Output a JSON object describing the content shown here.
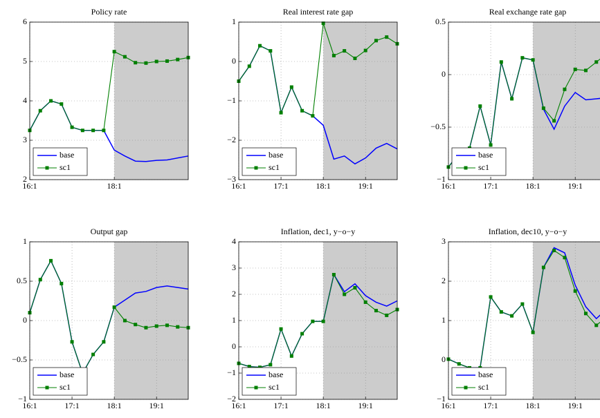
{
  "chart_data": [
    {
      "type": "line",
      "title": "Policy rate",
      "categories": [
        "16:1",
        null,
        null,
        null,
        null,
        null,
        null,
        null,
        "18:1",
        null,
        null,
        null,
        null,
        null,
        null,
        null
      ],
      "series": [
        {
          "name": "base",
          "color": "#0000ff",
          "values": [
            3.25,
            3.75,
            4.0,
            3.92,
            3.33,
            3.25,
            3.25,
            3.25,
            2.75,
            2.6,
            2.47,
            2.46,
            2.49,
            2.5,
            2.55,
            2.6
          ]
        },
        {
          "name": "sc1",
          "color": "#007f00",
          "values": [
            3.25,
            3.75,
            4.0,
            3.92,
            3.33,
            3.25,
            3.25,
            3.25,
            5.25,
            5.12,
            4.97,
            4.96,
            5.0,
            5.01,
            5.05,
            5.1
          ]
        }
      ],
      "ylim": [
        2,
        6
      ],
      "yticks": [
        2,
        3,
        4,
        5,
        6
      ],
      "grid": true,
      "legend": "lower left",
      "shade_start": 8
    },
    {
      "type": "line",
      "title": "Real interest rate gap",
      "categories": [
        "16:1",
        null,
        null,
        null,
        "17:1",
        null,
        null,
        null,
        "18:1",
        null,
        null,
        null,
        "19:1",
        null,
        null,
        null
      ],
      "series": [
        {
          "name": "base",
          "color": "#0000ff",
          "values": [
            -0.5,
            -0.12,
            0.4,
            0.27,
            -1.3,
            -0.65,
            -1.25,
            -1.38,
            -1.62,
            -2.48,
            -2.4,
            -2.6,
            -2.45,
            -2.2,
            -2.08,
            -2.22
          ]
        },
        {
          "name": "sc1",
          "color": "#007f00",
          "values": [
            -0.5,
            -0.12,
            0.4,
            0.27,
            -1.3,
            -0.65,
            -1.25,
            -1.38,
            0.97,
            0.15,
            0.27,
            0.08,
            0.28,
            0.53,
            0.62,
            0.45
          ]
        }
      ],
      "ylim": [
        -3,
        1
      ],
      "yticks": [
        {
          "value": -3,
          "label": "−3"
        },
        {
          "value": -2,
          "label": "−2"
        },
        {
          "value": -1,
          "label": "−1"
        },
        0,
        1
      ],
      "grid": true,
      "legend": "lower left",
      "shade_start": 8
    },
    {
      "type": "line",
      "title": "Real exchange rate gap",
      "categories": [
        "16:1",
        null,
        null,
        null,
        "17:1",
        null,
        null,
        null,
        "18:1",
        null,
        null,
        null,
        "19:1",
        null,
        null,
        null
      ],
      "series": [
        {
          "name": "base",
          "color": "#0000ff",
          "values": [
            -0.88,
            -0.75,
            -0.7,
            -0.3,
            -0.67,
            0.12,
            -0.23,
            0.16,
            0.14,
            -0.33,
            -0.52,
            -0.3,
            -0.17,
            -0.24,
            -0.23,
            -0.22
          ]
        },
        {
          "name": "sc1",
          "color": "#007f00",
          "values": [
            -0.88,
            -0.75,
            -0.7,
            -0.3,
            -0.67,
            0.12,
            -0.23,
            0.16,
            0.14,
            -0.32,
            -0.44,
            -0.14,
            0.05,
            0.04,
            0.12,
            0.2
          ]
        }
      ],
      "ylim": [
        -1,
        0.5
      ],
      "yticks": [
        {
          "value": -1,
          "label": "−1"
        },
        {
          "value": -0.5,
          "label": "−0.5"
        },
        0,
        0.5
      ],
      "grid": true,
      "legend": "lower left",
      "shade_start": 8
    },
    {
      "type": "line",
      "title": "Output gap",
      "categories": [
        "16:1",
        null,
        null,
        null,
        "17:1",
        null,
        null,
        null,
        "18:1",
        null,
        null,
        null,
        "19:1",
        null,
        null,
        null
      ],
      "series": [
        {
          "name": "base",
          "color": "#0000ff",
          "values": [
            0.1,
            0.52,
            0.76,
            0.47,
            -0.27,
            -0.67,
            -0.43,
            -0.27,
            0.17,
            0.26,
            0.35,
            0.37,
            0.42,
            0.44,
            0.42,
            0.4
          ]
        },
        {
          "name": "sc1",
          "color": "#007f00",
          "values": [
            0.1,
            0.52,
            0.76,
            0.47,
            -0.27,
            -0.67,
            -0.43,
            -0.27,
            0.17,
            0.0,
            -0.05,
            -0.09,
            -0.07,
            -0.06,
            -0.08,
            -0.09
          ]
        }
      ],
      "ylim": [
        -1,
        1
      ],
      "yticks": [
        {
          "value": -1,
          "label": "−1"
        },
        {
          "value": -0.5,
          "label": "−0.5"
        },
        0,
        0.5,
        1
      ],
      "grid": true,
      "legend": "lower left",
      "shade_start": 8
    },
    {
      "type": "line",
      "title": "Inflation, dec1, y−o−y",
      "categories": [
        "16:1",
        null,
        null,
        null,
        "17:1",
        null,
        null,
        null,
        "18:1",
        null,
        null,
        null,
        "19:1",
        null,
        null,
        null
      ],
      "series": [
        {
          "name": "base",
          "color": "#0000ff",
          "values": [
            -0.63,
            -0.75,
            -0.78,
            -0.68,
            0.68,
            -0.35,
            0.5,
            0.97,
            0.97,
            2.75,
            2.1,
            2.4,
            1.95,
            1.7,
            1.55,
            1.75
          ]
        },
        {
          "name": "sc1",
          "color": "#007f00",
          "values": [
            -0.63,
            -0.75,
            -0.78,
            -0.68,
            0.68,
            -0.35,
            0.5,
            0.97,
            0.97,
            2.75,
            2.0,
            2.25,
            1.7,
            1.38,
            1.2,
            1.42
          ]
        }
      ],
      "ylim": [
        -2,
        4
      ],
      "yticks": [
        {
          "value": -2,
          "label": "−2"
        },
        {
          "value": -1,
          "label": "−1"
        },
        0,
        1,
        2,
        3,
        4
      ],
      "grid": true,
      "legend": "lower left",
      "shade_start": 8
    },
    {
      "type": "line",
      "title": "Inflation, dec10, y−o−y",
      "categories": [
        "16:1",
        null,
        null,
        null,
        "17:1",
        null,
        null,
        null,
        "18:1",
        null,
        null,
        null,
        "19:1",
        null,
        null,
        null
      ],
      "series": [
        {
          "name": "base",
          "color": "#0000ff",
          "values": [
            0.02,
            -0.1,
            -0.2,
            -0.2,
            1.6,
            1.22,
            1.12,
            1.42,
            0.7,
            2.35,
            2.85,
            2.72,
            1.9,
            1.35,
            1.05,
            1.3
          ]
        },
        {
          "name": "sc1",
          "color": "#007f00",
          "values": [
            0.02,
            -0.1,
            -0.2,
            -0.2,
            1.6,
            1.22,
            1.12,
            1.42,
            0.7,
            2.35,
            2.78,
            2.6,
            1.75,
            1.18,
            0.88,
            1.1
          ]
        }
      ],
      "ylim": [
        -1,
        3
      ],
      "yticks": [
        {
          "value": -1,
          "label": "−1"
        },
        0,
        1,
        2,
        3
      ],
      "grid": true,
      "legend": "lower left",
      "shade_start": 8
    }
  ]
}
